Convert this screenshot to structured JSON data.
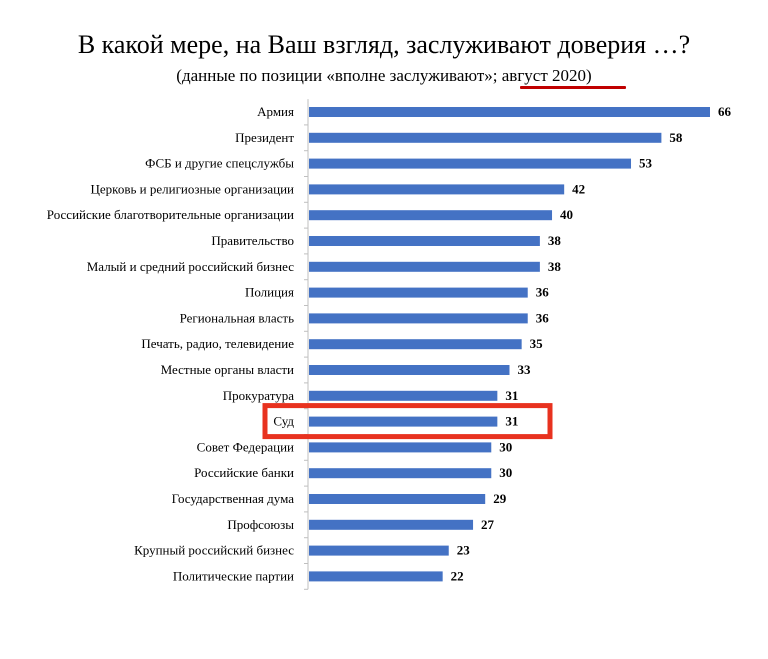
{
  "title": "В какой мере, на Ваш взгляд, заслуживают доверия …?",
  "subtitle_prefix": "(данные по позиции «вполне заслуживают»; ",
  "subtitle_date": "август 2020",
  "subtitle_suffix": ")",
  "colors": {
    "bar": "#4472c4",
    "highlight": "#e8321f",
    "underline": "#c00000"
  },
  "highlighted_category": "Суд",
  "chart_data": {
    "type": "bar",
    "orientation": "horizontal",
    "categories": [
      "Армия",
      "Президент",
      "ФСБ и другие спецслужбы",
      "Церковь и религиозные организации",
      "Российские благотворительные организации",
      "Правительство",
      "Малый и средний российский бизнес",
      "Полиция",
      "Региональная власть",
      "Печать, радио, телевидение",
      "Местные органы власти",
      "Прокуратура",
      "Суд",
      "Совет Федерации",
      "Российские банки",
      "Государственная дума",
      "Профсоюзы",
      "Крупный российский бизнес",
      "Политические партии"
    ],
    "values": [
      66,
      58,
      53,
      42,
      40,
      38,
      38,
      36,
      36,
      35,
      33,
      31,
      31,
      30,
      30,
      29,
      27,
      23,
      22
    ],
    "xlim": [
      0,
      70
    ],
    "grid": false,
    "legend": "none"
  }
}
